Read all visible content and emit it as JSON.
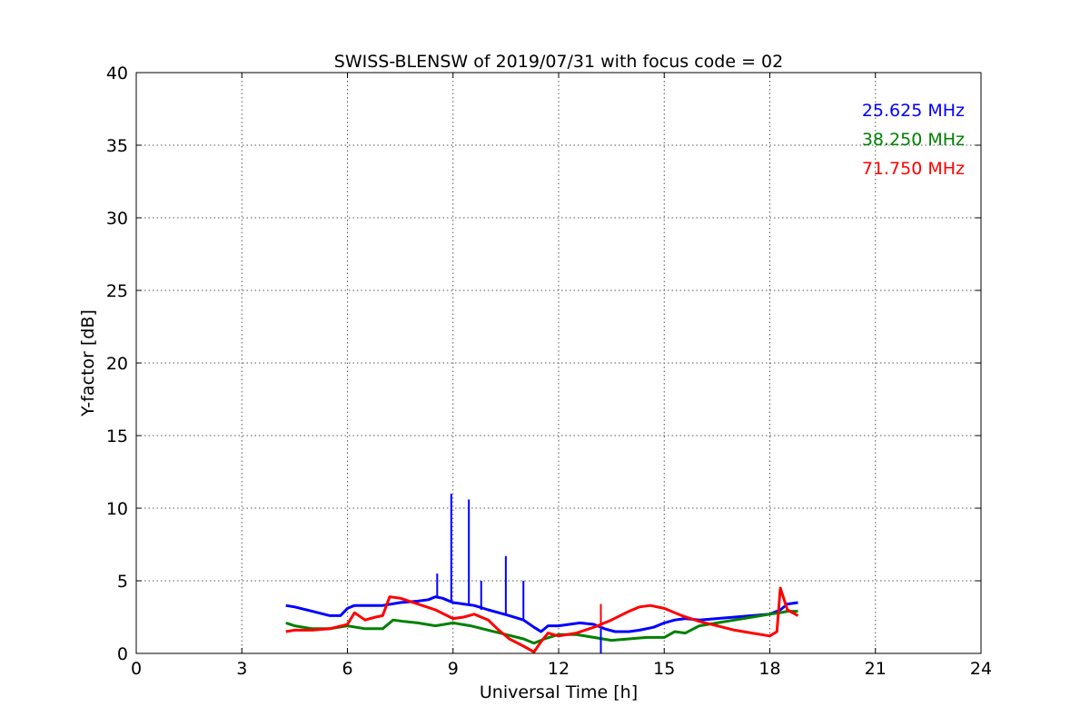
{
  "chart_data": {
    "type": "line",
    "title": "SWISS-BLENSW of 2019/07/31 with focus code = 02",
    "xlabel": "Universal Time [h]",
    "ylabel": "Y-factor [dB]",
    "xlim": [
      0,
      24
    ],
    "ylim": [
      0,
      40
    ],
    "xticks": [
      0,
      3,
      6,
      9,
      12,
      15,
      18,
      21,
      24
    ],
    "yticks": [
      0,
      5,
      10,
      15,
      20,
      25,
      30,
      35,
      40
    ],
    "xtick_labels": [
      "0",
      "3",
      "6",
      "9",
      "12",
      "15",
      "18",
      "21",
      "24"
    ],
    "ytick_labels": [
      "0",
      "5",
      "10",
      "15",
      "20",
      "25",
      "30",
      "35",
      "40"
    ],
    "grid": true,
    "legend_position": "top-right",
    "series": [
      {
        "name": "25.625 MHz",
        "color": "#0000ff",
        "x": [
          4.25,
          4.5,
          5.0,
          5.5,
          5.8,
          6.0,
          6.2,
          6.5,
          7.0,
          7.5,
          8.0,
          8.3,
          8.5,
          8.7,
          9.0,
          9.3,
          9.6,
          10.0,
          10.3,
          10.6,
          11.0,
          11.3,
          11.5,
          11.7,
          12.0,
          12.3,
          12.6,
          13.0,
          13.3,
          13.6,
          14.0,
          14.3,
          14.7,
          15.0,
          15.3,
          15.6,
          16.0,
          16.5,
          17.0,
          17.5,
          18.0,
          18.3,
          18.5,
          18.8
        ],
        "y": [
          3.3,
          3.2,
          2.9,
          2.6,
          2.6,
          3.1,
          3.3,
          3.3,
          3.3,
          3.5,
          3.6,
          3.7,
          3.9,
          3.8,
          3.5,
          3.4,
          3.3,
          3.0,
          2.8,
          2.6,
          2.3,
          1.8,
          1.5,
          1.9,
          1.9,
          2.0,
          2.1,
          2.0,
          1.7,
          1.5,
          1.5,
          1.6,
          1.8,
          2.1,
          2.3,
          2.4,
          2.3,
          2.4,
          2.5,
          2.6,
          2.7,
          3.0,
          3.4,
          3.5
        ]
      },
      {
        "name": "38.250 MHz",
        "color": "#008000",
        "x": [
          4.25,
          4.5,
          5.0,
          5.5,
          6.0,
          6.5,
          7.0,
          7.3,
          7.6,
          8.0,
          8.5,
          9.0,
          9.5,
          10.0,
          10.5,
          11.0,
          11.3,
          11.6,
          12.0,
          12.5,
          13.0,
          13.5,
          14.0,
          14.5,
          15.0,
          15.3,
          15.6,
          16.0,
          16.5,
          17.0,
          17.5,
          18.0,
          18.3,
          18.5,
          18.8
        ],
        "y": [
          2.1,
          1.9,
          1.7,
          1.7,
          1.9,
          1.7,
          1.7,
          2.3,
          2.2,
          2.1,
          1.9,
          2.1,
          1.9,
          1.6,
          1.3,
          1.0,
          0.7,
          1.0,
          1.3,
          1.3,
          1.1,
          0.9,
          1.0,
          1.1,
          1.1,
          1.5,
          1.4,
          1.9,
          2.1,
          2.3,
          2.5,
          2.7,
          2.8,
          2.9,
          2.9
        ]
      },
      {
        "name": "71.750 MHz",
        "color": "#ff0000",
        "x": [
          4.25,
          4.5,
          5.0,
          5.5,
          6.0,
          6.2,
          6.5,
          6.8,
          7.0,
          7.2,
          7.5,
          8.0,
          8.5,
          9.0,
          9.3,
          9.6,
          10.0,
          10.3,
          10.6,
          11.0,
          11.3,
          11.5,
          11.7,
          12.0,
          12.5,
          13.0,
          13.5,
          14.0,
          14.3,
          14.6,
          15.0,
          15.5,
          16.0,
          16.5,
          17.0,
          17.5,
          18.0,
          18.2,
          18.3,
          18.5,
          18.8
        ],
        "y": [
          1.5,
          1.6,
          1.6,
          1.7,
          2.0,
          2.8,
          2.3,
          2.5,
          2.6,
          3.9,
          3.8,
          3.4,
          3.0,
          2.4,
          2.5,
          2.7,
          2.3,
          1.6,
          1.0,
          0.5,
          0.1,
          0.8,
          1.4,
          1.2,
          1.4,
          1.8,
          2.3,
          2.9,
          3.2,
          3.3,
          3.1,
          2.6,
          2.2,
          1.9,
          1.6,
          1.4,
          1.2,
          1.5,
          4.5,
          3.0,
          2.6
        ]
      }
    ],
    "spikes": [
      {
        "series": 0,
        "x": 8.95,
        "y": 11.0
      },
      {
        "series": 0,
        "x": 9.45,
        "y": 10.6
      },
      {
        "series": 0,
        "x": 8.55,
        "y": 5.5
      },
      {
        "series": 0,
        "x": 9.8,
        "y": 5.0
      },
      {
        "series": 0,
        "x": 10.5,
        "y": 6.7
      },
      {
        "series": 0,
        "x": 11.0,
        "y": 5.0
      },
      {
        "series": 0,
        "x": 13.2,
        "y": 0.0
      },
      {
        "series": 2,
        "x": 13.2,
        "y": 3.4
      }
    ]
  }
}
